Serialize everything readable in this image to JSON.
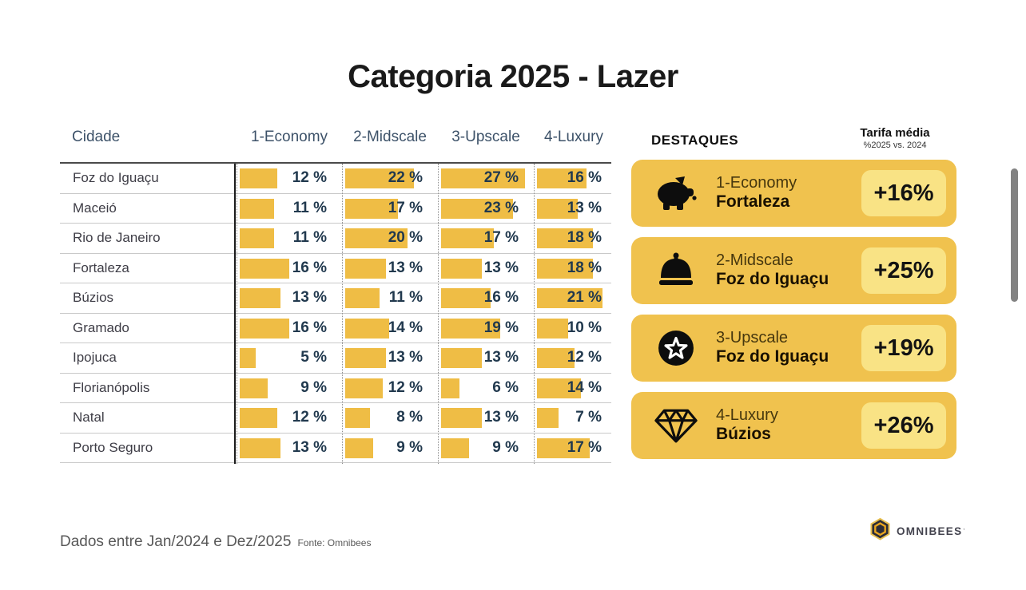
{
  "title": "Categoria 2025 - Lazer",
  "table": {
    "city_header": "Cidade",
    "category_headers": [
      "1-Economy",
      "2-Midscale",
      "3-Upscale",
      "4-Luxury"
    ],
    "rows": [
      {
        "city": "Foz do Iguaçu",
        "values": [
          12,
          22,
          27,
          16
        ]
      },
      {
        "city": "Maceió",
        "values": [
          11,
          17,
          23,
          13
        ]
      },
      {
        "city": "Rio de Janeiro",
        "values": [
          11,
          20,
          17,
          18
        ]
      },
      {
        "city": "Fortaleza",
        "values": [
          16,
          13,
          13,
          18
        ]
      },
      {
        "city": "Búzios",
        "values": [
          13,
          11,
          16,
          21
        ]
      },
      {
        "city": "Gramado",
        "values": [
          16,
          14,
          19,
          10
        ]
      },
      {
        "city": "Ipojuca",
        "values": [
          5,
          13,
          13,
          12
        ]
      },
      {
        "city": "Florianópolis",
        "values": [
          9,
          12,
          6,
          14
        ]
      },
      {
        "city": "Natal",
        "values": [
          12,
          8,
          13,
          7
        ]
      },
      {
        "city": "Porto Seguro",
        "values": [
          13,
          9,
          9,
          17
        ]
      }
    ],
    "value_suffix": " %"
  },
  "destaques": {
    "heading": "DESTAQUES",
    "tarifa_title": "Tarifa média",
    "tarifa_subtitle": "%2025 vs. 2024",
    "cards": [
      {
        "icon": "piggy-bank-icon",
        "category": "1-Economy",
        "city": "Fortaleza",
        "delta": "+16%"
      },
      {
        "icon": "bell-icon",
        "category": "2-Midscale",
        "city": "Foz do Iguaçu",
        "delta": "+25%"
      },
      {
        "icon": "star-icon",
        "category": "3-Upscale",
        "city": "Foz do Iguaçu",
        "delta": "+19%"
      },
      {
        "icon": "diamond-icon",
        "category": "4-Luxury",
        "city": "Búzios",
        "delta": "+26%"
      }
    ]
  },
  "footer": {
    "period": "Dados entre Jan/2024 e Dez/2025",
    "source": "Fonte: Omnibees"
  },
  "logo": {
    "text": "OMNIBEES",
    "mark": "’"
  },
  "colors": {
    "bar_gold": "#EFBD45",
    "card_gold": "#F0C24E",
    "badge_yellow": "#F9E385",
    "value_navy": "#21394E",
    "header_slate": "#3D5269"
  },
  "chart_data": {
    "type": "bar",
    "orientation": "horizontal",
    "title": "Categoria 2025 - Lazer",
    "unit": "%",
    "value_labels": true,
    "xlim": [
      0,
      30
    ],
    "grid": false,
    "categories": [
      "Foz do Iguaçu",
      "Maceió",
      "Rio de Janeiro",
      "Fortaleza",
      "Búzios",
      "Gramado",
      "Ipojuca",
      "Florianópolis",
      "Natal",
      "Porto Seguro"
    ],
    "series": [
      {
        "name": "1-Economy",
        "values": [
          12,
          11,
          11,
          16,
          13,
          16,
          5,
          9,
          12,
          13
        ]
      },
      {
        "name": "2-Midscale",
        "values": [
          22,
          17,
          20,
          13,
          11,
          14,
          13,
          12,
          8,
          9
        ]
      },
      {
        "name": "3-Upscale",
        "values": [
          27,
          23,
          17,
          13,
          16,
          19,
          13,
          6,
          13,
          9
        ]
      },
      {
        "name": "4-Luxury",
        "values": [
          16,
          13,
          18,
          18,
          21,
          10,
          12,
          14,
          7,
          17
        ]
      }
    ],
    "highlights": [
      {
        "category": "1-Economy",
        "city": "Fortaleza",
        "tarifa_media_change": "+16%"
      },
      {
        "category": "2-Midscale",
        "city": "Foz do Iguaçu",
        "tarifa_media_change": "+25%"
      },
      {
        "category": "3-Upscale",
        "city": "Foz do Iguaçu",
        "tarifa_media_change": "+19%"
      },
      {
        "category": "4-Luxury",
        "city": "Búzios",
        "tarifa_media_change": "+26%"
      }
    ]
  }
}
